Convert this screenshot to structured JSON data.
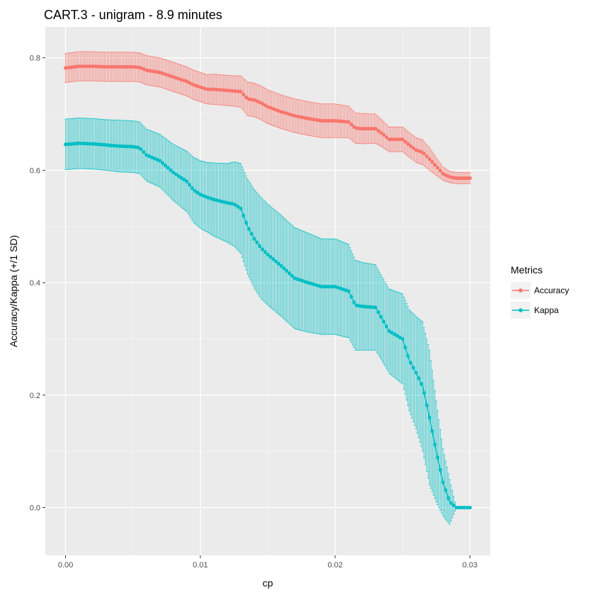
{
  "chart_data": {
    "type": "line",
    "title": "CART.3 - unigram - 8.9 minutes",
    "xlabel": "cp",
    "ylabel": "Accuracy/Kappa (+/1 SD)",
    "xlim": [
      -0.0015,
      0.0315
    ],
    "ylim": [
      -0.085,
      0.855
    ],
    "x_ticks": [
      0.0,
      0.01,
      0.02,
      0.03
    ],
    "x_tick_labels": [
      "0.00",
      "0.01",
      "0.02",
      "0.03"
    ],
    "y_ticks": [
      0.0,
      0.2,
      0.4,
      0.6,
      0.8
    ],
    "y_tick_labels": [
      "0.0",
      "0.2",
      "0.4",
      "0.6",
      "0.8"
    ],
    "grid": true,
    "legend": {
      "title": "Metrics",
      "position": "right"
    },
    "series": [
      {
        "name": "Accuracy",
        "color": "#F8766D",
        "x": [
          0.0,
          0.001,
          0.002,
          0.003,
          0.004,
          0.005,
          0.0055,
          0.006,
          0.007,
          0.008,
          0.009,
          0.0095,
          0.01,
          0.0105,
          0.011,
          0.012,
          0.0125,
          0.013,
          0.0135,
          0.014,
          0.0145,
          0.015,
          0.016,
          0.017,
          0.018,
          0.019,
          0.02,
          0.021,
          0.0215,
          0.022,
          0.023,
          0.0235,
          0.024,
          0.025,
          0.0255,
          0.026,
          0.0265,
          0.027,
          0.0275,
          0.028,
          0.0285,
          0.029,
          0.03
        ],
        "y": [
          0.782,
          0.785,
          0.785,
          0.784,
          0.784,
          0.784,
          0.783,
          0.778,
          0.774,
          0.766,
          0.758,
          0.752,
          0.748,
          0.744,
          0.744,
          0.742,
          0.741,
          0.74,
          0.727,
          0.725,
          0.72,
          0.713,
          0.704,
          0.697,
          0.692,
          0.688,
          0.688,
          0.686,
          0.675,
          0.674,
          0.674,
          0.665,
          0.655,
          0.655,
          0.645,
          0.636,
          0.632,
          0.62,
          0.607,
          0.594,
          0.588,
          0.586,
          0.586
        ],
        "sd": [
          0.026,
          0.026,
          0.026,
          0.026,
          0.026,
          0.026,
          0.026,
          0.026,
          0.026,
          0.026,
          0.026,
          0.026,
          0.026,
          0.026,
          0.027,
          0.027,
          0.027,
          0.028,
          0.03,
          0.03,
          0.03,
          0.03,
          0.03,
          0.03,
          0.03,
          0.03,
          0.03,
          0.028,
          0.027,
          0.027,
          0.026,
          0.024,
          0.022,
          0.022,
          0.022,
          0.022,
          0.022,
          0.02,
          0.016,
          0.012,
          0.01,
          0.01,
          0.01
        ]
      },
      {
        "name": "Kappa",
        "color": "#00BFC4",
        "x": [
          0.0,
          0.001,
          0.002,
          0.003,
          0.004,
          0.005,
          0.0055,
          0.006,
          0.007,
          0.008,
          0.009,
          0.0095,
          0.01,
          0.0105,
          0.011,
          0.012,
          0.0125,
          0.013,
          0.0135,
          0.014,
          0.0145,
          0.015,
          0.016,
          0.017,
          0.018,
          0.019,
          0.02,
          0.021,
          0.0215,
          0.022,
          0.023,
          0.0235,
          0.024,
          0.025,
          0.0255,
          0.026,
          0.0265,
          0.027,
          0.0275,
          0.028,
          0.0285,
          0.029,
          0.03
        ],
        "y": [
          0.646,
          0.648,
          0.647,
          0.645,
          0.643,
          0.642,
          0.64,
          0.627,
          0.617,
          0.596,
          0.58,
          0.565,
          0.557,
          0.552,
          0.548,
          0.542,
          0.54,
          0.532,
          0.5,
          0.478,
          0.462,
          0.45,
          0.43,
          0.408,
          0.4,
          0.393,
          0.393,
          0.385,
          0.36,
          0.358,
          0.356,
          0.335,
          0.314,
          0.3,
          0.262,
          0.24,
          0.215,
          0.16,
          0.1,
          0.045,
          0.01,
          0.0,
          0.0
        ],
        "sd": [
          0.045,
          0.045,
          0.045,
          0.045,
          0.046,
          0.046,
          0.046,
          0.046,
          0.047,
          0.05,
          0.054,
          0.058,
          0.06,
          0.062,
          0.065,
          0.07,
          0.075,
          0.08,
          0.085,
          0.088,
          0.09,
          0.09,
          0.09,
          0.09,
          0.088,
          0.085,
          0.085,
          0.083,
          0.08,
          0.078,
          0.076,
          0.075,
          0.075,
          0.08,
          0.09,
          0.1,
          0.115,
          0.12,
          0.09,
          0.06,
          0.04,
          0.0,
          0.0
        ]
      }
    ]
  }
}
